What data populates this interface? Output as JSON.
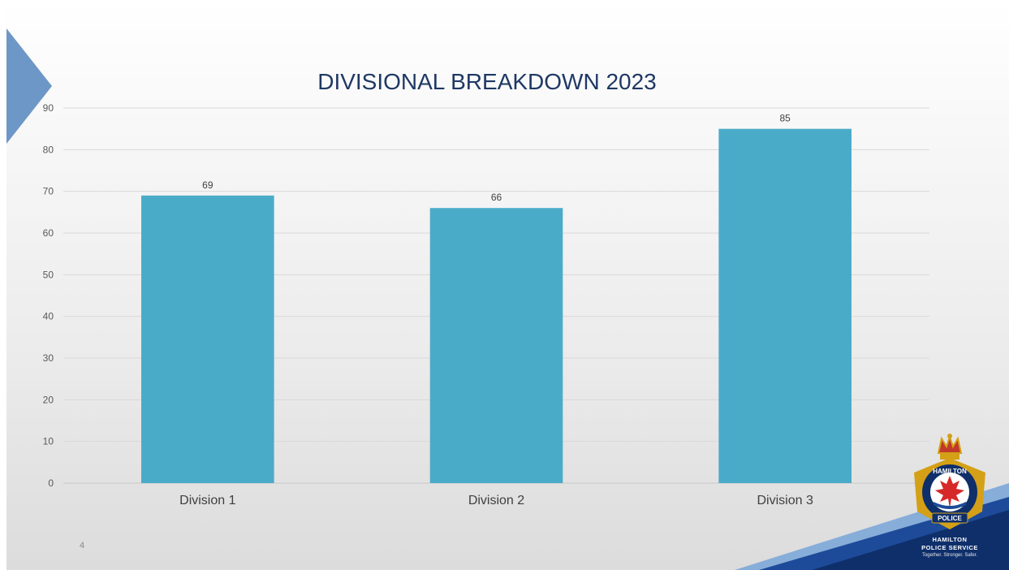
{
  "chart_data": {
    "type": "bar",
    "title": "DIVISIONAL BREAKDOWN 2023",
    "categories": [
      "Division 1",
      "Division 2",
      "Division 3"
    ],
    "values": [
      69,
      66,
      85
    ],
    "data_labels": [
      "69",
      "66",
      "85"
    ],
    "yticks": [
      "0",
      "10",
      "20",
      "30",
      "40",
      "50",
      "60",
      "70",
      "80",
      "90"
    ],
    "ylim": [
      0,
      90
    ],
    "grid": true,
    "legend": "none",
    "bar_color": "#4aabc9"
  },
  "slide": {
    "number": "4"
  },
  "logo": {
    "name": "HAMILTON",
    "line1": "HAMILTON",
    "line2": "POLICE SERVICE",
    "tagline": "Together. Stronger. Safer.",
    "badge_word": "POLICE"
  },
  "colors": {
    "title": "#1f3864",
    "accent_blue": "#5b8ac0",
    "navy": "#0f2f6b",
    "gold": "#d4a017",
    "red": "#d62828"
  }
}
